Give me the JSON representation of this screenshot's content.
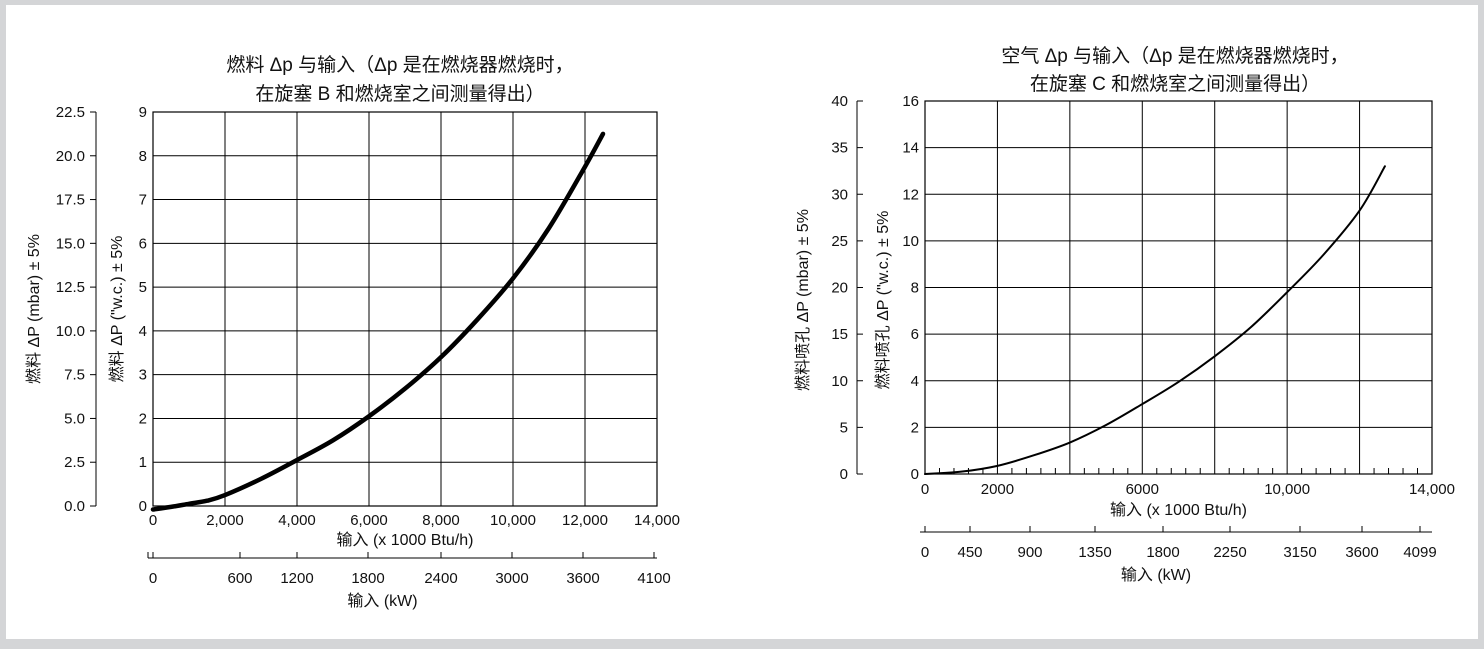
{
  "background_color": "#d4d5d7",
  "panel_color": "#ffffff",
  "line_color": "#000000",
  "chart_data": [
    {
      "type": "line",
      "title_lines": [
        "燃料 Δp 与输入（Δp 是在燃烧器燃烧时，",
        "在旋塞 B 和燃烧室之间测量得出）"
      ],
      "xlabel": "输入 (x 1000 Btu/h)",
      "x2label": "输入 (kW)",
      "ylabel": "燃料 ΔP (\"w.c.) ± 5%",
      "y2label": "燃料 ΔP (mbar) ± 5%",
      "xlim": [
        0,
        14000
      ],
      "ylim": [
        0,
        9
      ],
      "y2lim": [
        0,
        22.5
      ],
      "x_ticks": [
        "0",
        "2,000",
        "4,000",
        "6,000",
        "8,000",
        "10,000",
        "12,000",
        "14,000"
      ],
      "x2_ticks": [
        "0",
        "600",
        "1200",
        "1800",
        "2400",
        "3000",
        "3600",
        "4100"
      ],
      "y_ticks": [
        "0",
        "1",
        "2",
        "3",
        "4",
        "5",
        "6",
        "7",
        "8",
        "9"
      ],
      "y2_ticks": [
        "0.0",
        "2.5",
        "5.0",
        "7.5",
        "10.0",
        "12.5",
        "15.0",
        "17.5",
        "20.0",
        "22.5"
      ],
      "grid": true,
      "series": [
        {
          "x": [
            0,
            500,
            1000,
            1500,
            2000,
            3000,
            4000,
            5000,
            6000,
            7000,
            8000,
            9000,
            10000,
            11000,
            12000,
            12500
          ],
          "y": [
            -0.08,
            -0.02,
            0.05,
            0.12,
            0.25,
            0.62,
            1.05,
            1.5,
            2.05,
            2.68,
            3.4,
            4.25,
            5.2,
            6.35,
            7.75,
            8.5
          ]
        }
      ]
    },
    {
      "type": "line",
      "title_lines": [
        "空气 Δp 与输入（Δp 是在燃烧器燃烧时，",
        "在旋塞 C 和燃烧室之间测量得出）"
      ],
      "xlabel": "输入 (x 1000 Btu/h)",
      "x2label": "输入 (kW)",
      "ylabel": "燃料喷孔 ΔP (\"w.c.) ± 5%",
      "y2label": "燃料喷孔 ΔP (mbar) ± 5%",
      "xlim": [
        0,
        14000
      ],
      "ylim": [
        0,
        16
      ],
      "y2lim": [
        0,
        40
      ],
      "x_ticks": [
        "0",
        "2000",
        "6000",
        "10,000",
        "14,000"
      ],
      "x2_ticks": [
        "0",
        "450",
        "900",
        "1350",
        "1800",
        "2250",
        "3150",
        "3600",
        "4099"
      ],
      "y_ticks": [
        "0",
        "2",
        "4",
        "6",
        "8",
        "10",
        "12",
        "14",
        "16"
      ],
      "y2_ticks": [
        "0",
        "5",
        "10",
        "15",
        "20",
        "25",
        "30",
        "35",
        "40"
      ],
      "grid": true,
      "series": [
        {
          "x": [
            0,
            1000,
            2000,
            3000,
            4000,
            5000,
            6000,
            7000,
            8000,
            9000,
            10000,
            11000,
            12000,
            12700
          ],
          "y": [
            0,
            0.1,
            0.35,
            0.8,
            1.35,
            2.1,
            3.0,
            3.95,
            5.05,
            6.3,
            7.8,
            9.4,
            11.3,
            13.2
          ]
        }
      ]
    }
  ]
}
